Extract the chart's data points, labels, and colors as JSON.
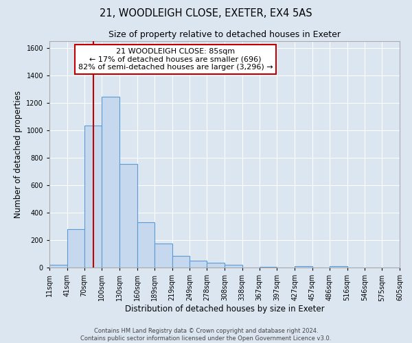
{
  "title": "21, WOODLEIGH CLOSE, EXETER, EX4 5AS",
  "subtitle": "Size of property relative to detached houses in Exeter",
  "xlabel": "Distribution of detached houses by size in Exeter",
  "ylabel": "Number of detached properties",
  "bar_edges": [
    11,
    41,
    70,
    100,
    130,
    160,
    189,
    219,
    249,
    278,
    308,
    338,
    367,
    397,
    427,
    457,
    486,
    516,
    546,
    575,
    605
  ],
  "bar_heights": [
    20,
    280,
    1035,
    1245,
    755,
    330,
    175,
    85,
    50,
    35,
    20,
    0,
    5,
    0,
    10,
    0,
    8,
    0,
    0,
    0,
    0
  ],
  "bar_color": "#c5d8ed",
  "bar_edge_color": "#5b9bd5",
  "vline_x": 85,
  "vline_color": "#c00000",
  "annotation_title": "21 WOODLEIGH CLOSE: 85sqm",
  "annotation_line1": "← 17% of detached houses are smaller (696)",
  "annotation_line2": "82% of semi-detached houses are larger (3,296) →",
  "annotation_box_facecolor": "#ffffff",
  "annotation_box_edgecolor": "#c00000",
  "ylim": [
    0,
    1650
  ],
  "yticks": [
    0,
    200,
    400,
    600,
    800,
    1000,
    1200,
    1400,
    1600
  ],
  "tick_labels": [
    "11sqm",
    "41sqm",
    "70sqm",
    "100sqm",
    "130sqm",
    "160sqm",
    "189sqm",
    "219sqm",
    "249sqm",
    "278sqm",
    "308sqm",
    "338sqm",
    "367sqm",
    "397sqm",
    "427sqm",
    "457sqm",
    "486sqm",
    "516sqm",
    "546sqm",
    "575sqm",
    "605sqm"
  ],
  "footer1": "Contains HM Land Registry data © Crown copyright and database right 2024.",
  "footer2": "Contains public sector information licensed under the Open Government Licence v3.0.",
  "background_color": "#dce6f1",
  "plot_background": "#dce6f1",
  "grid_color": "#ffffff",
  "title_fontsize": 10.5,
  "subtitle_fontsize": 9,
  "axis_label_fontsize": 8.5,
  "tick_fontsize": 7,
  "annotation_fontsize": 8,
  "footer_fontsize": 6
}
